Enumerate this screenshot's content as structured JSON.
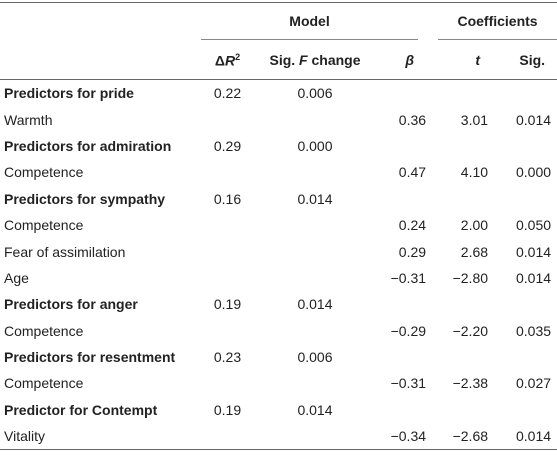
{
  "header": {
    "groups": [
      "Model",
      "Coefficients"
    ],
    "columns": [
      [
        "Δ",
        "R",
        "2"
      ],
      [
        "Sig. ",
        "F",
        " change"
      ],
      [
        "β"
      ],
      [
        "t"
      ],
      [
        "Sig."
      ]
    ]
  },
  "rows": [
    {
      "label": "Predictors for pride",
      "delta_r2": "0.22",
      "sig_f": "0.006"
    },
    {
      "label": "Warmth",
      "beta": "0.36",
      "t": "3.01",
      "sig": "0.014"
    },
    {
      "label": "Predictors for admiration",
      "delta_r2": "0.29",
      "sig_f": "0.000"
    },
    {
      "label": "Competence",
      "beta": "0.47",
      "t": "4.10",
      "sig": "0.000"
    },
    {
      "label": "Predictors for sympathy",
      "delta_r2": "0.16",
      "sig_f": "0.014"
    },
    {
      "label": "Competence",
      "beta": "0.24",
      "t": "2.00",
      "sig": "0.050"
    },
    {
      "label": "Fear of assimilation",
      "beta": "0.29",
      "t": "2.68",
      "sig": "0.014"
    },
    {
      "label": "Age",
      "beta": "−0.31",
      "t": "−2.80",
      "sig": "0.014"
    },
    {
      "label": "Predictors for anger",
      "delta_r2": "0.19",
      "sig_f": "0.014"
    },
    {
      "label": "Competence",
      "beta": "−0.29",
      "t": "−2.20",
      "sig": "0.035"
    },
    {
      "label": "Predictors for resentment",
      "delta_r2": "0.23",
      "sig_f": "0.006"
    },
    {
      "label": "Competence",
      "beta": "−0.31",
      "t": "−2.38",
      "sig": "0.027"
    },
    {
      "label": "Predictor for Contempt",
      "delta_r2": "0.19",
      "sig_f": "0.014"
    },
    {
      "label": "Vitality",
      "beta": "−0.34",
      "t": "−2.68",
      "sig": "0.014"
    }
  ]
}
